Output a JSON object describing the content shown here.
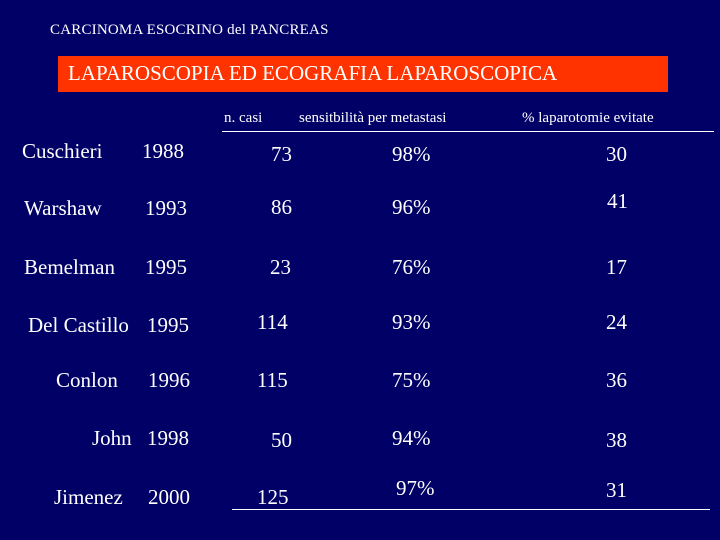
{
  "slide": {
    "title": "CARCINOMA ESOCRINO del PANCREAS",
    "banner": "LAPAROSCOPIA ED ECOGRAFIA LAPAROSCOPICA"
  },
  "table": {
    "headers": {
      "cases": "n. casi",
      "sensitivity": "sensitbilità per metastasi",
      "avoided": "% laparotomie evitate"
    },
    "rows": [
      {
        "study": "Cuschieri",
        "year": "1988",
        "cases": "73",
        "sensitivity": "98%",
        "avoided": "30"
      },
      {
        "study": "Warshaw",
        "year": "1993",
        "cases": "86",
        "sensitivity": "96%",
        "avoided": "41"
      },
      {
        "study": "Bemelman",
        "year": "1995",
        "cases": "23",
        "sensitivity": "76%",
        "avoided": "17"
      },
      {
        "study": "Del Castillo",
        "year": "1995",
        "cases": "114",
        "sensitivity": "93%",
        "avoided": "24"
      },
      {
        "study": "Conlon",
        "year": "1996",
        "cases": "115",
        "sensitivity": "75%",
        "avoided": "36"
      },
      {
        "study": "John",
        "year": "1998",
        "cases": "50",
        "sensitivity": "94%",
        "avoided": "38"
      },
      {
        "study": "Jimenez",
        "year": "2000",
        "cases": "125",
        "sensitivity": "97%",
        "avoided": "31"
      }
    ]
  },
  "colors": {
    "background": "#000066",
    "banner": "#ff3300",
    "text": "#ffffff"
  }
}
